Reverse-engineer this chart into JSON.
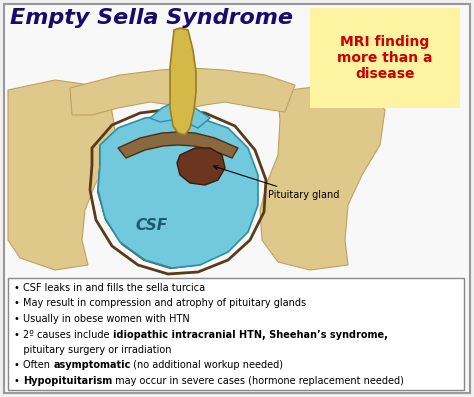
{
  "title": "Empty Sella Syndrome",
  "title_color": "#1a0a6b",
  "title_fontsize": 16,
  "bg_color": "#f0f0f0",
  "border_color": "#999999",
  "sticky_note_color": "#fef3a0",
  "sticky_text": "MRI finding\nmore than a\ndisease",
  "sticky_text_color": "#cc0000",
  "sticky_fontsize": 10,
  "csf_label": "CSF",
  "pit_label": "Pituitary gland",
  "bone_color": "#dfc98a",
  "csf_color": "#72c8dc",
  "csf_dark": "#3ba8c8",
  "dark_tissue": "#6b3520",
  "stalk_color": "#c8a840",
  "membrane_color": "#8a7050",
  "white_bg": "#f8f8f8",
  "fig_w": 4.74,
  "fig_h": 3.97,
  "fig_dpi": 100
}
